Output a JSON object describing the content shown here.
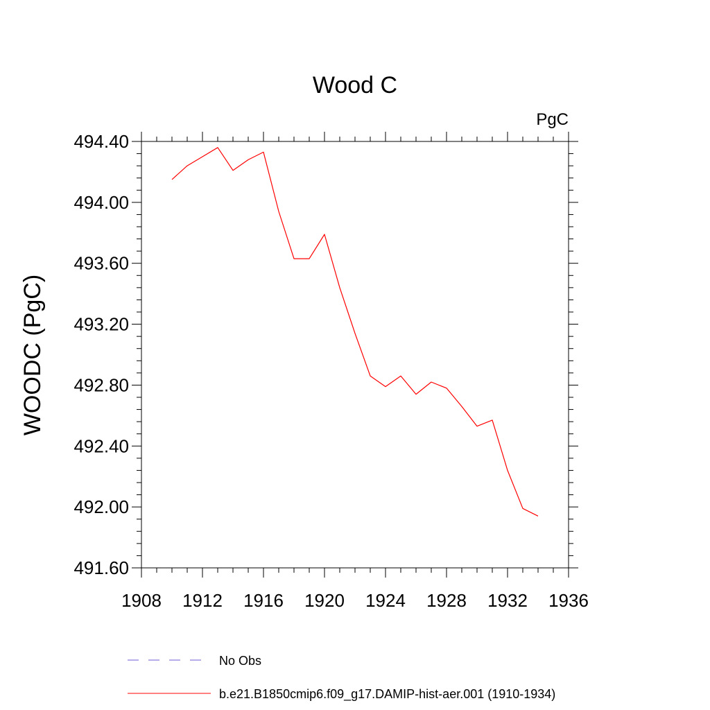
{
  "chart_data": {
    "type": "line",
    "title": "Wood C",
    "units_label": "PgC",
    "xlabel": "",
    "ylabel": "WOODC  (PgC)",
    "xlim": [
      1908,
      1936
    ],
    "ylim": [
      491.6,
      494.4
    ],
    "x_ticks": [
      "1908",
      "1912",
      "1916",
      "1920",
      "1924",
      "1928",
      "1932",
      "1936"
    ],
    "y_ticks": [
      "491.60",
      "492.00",
      "492.40",
      "492.80",
      "493.20",
      "493.60",
      "494.00",
      "494.40"
    ],
    "grid": false,
    "legend_position": "bottom",
    "series": [
      {
        "name": "b.e21.B1850cmip6.f09_g17.DAMIP-hist-aer.001 (1910-1934)",
        "color": "#ff0000",
        "style": "solid",
        "x": [
          1910,
          1911,
          1912,
          1913,
          1914,
          1915,
          1916,
          1917,
          1918,
          1919,
          1920,
          1921,
          1922,
          1923,
          1924,
          1925,
          1926,
          1927,
          1928,
          1929,
          1930,
          1931,
          1932,
          1933,
          1934
        ],
        "y": [
          494.15,
          494.24,
          494.3,
          494.36,
          494.21,
          494.28,
          494.33,
          493.94,
          493.63,
          493.63,
          493.79,
          493.44,
          493.14,
          492.86,
          492.79,
          492.86,
          492.74,
          492.82,
          492.78,
          492.66,
          492.53,
          492.57,
          492.24,
          491.99,
          491.94
        ]
      }
    ],
    "legend": [
      {
        "label": "No Obs",
        "color": "#6b5bd6",
        "style": "dashed"
      },
      {
        "label": "b.e21.B1850cmip6.f09_g17.DAMIP-hist-aer.001 (1910-1934)",
        "color": "#ff0000",
        "style": "solid"
      }
    ]
  }
}
